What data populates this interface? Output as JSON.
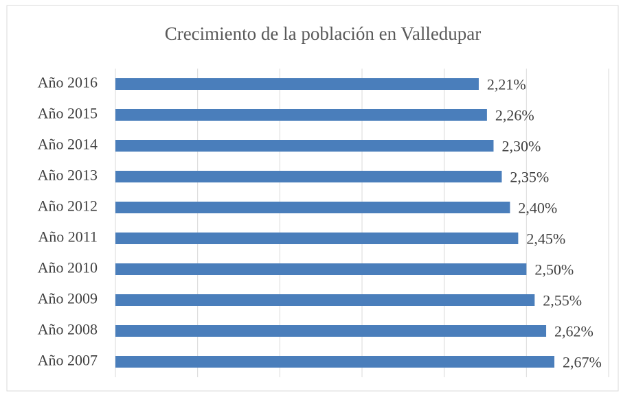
{
  "chart_data": {
    "type": "bar",
    "orientation": "horizontal",
    "title": "Crecimiento de la población en Valledupar",
    "categories": [
      "Año 2016",
      "Año 2015",
      "Año 2014",
      "Año 2013",
      "Año 2012",
      "Año 2011",
      "Año 2010",
      "Año 2009",
      "Año 2008",
      "Año 2007"
    ],
    "values": [
      2.21,
      2.26,
      2.3,
      2.35,
      2.4,
      2.45,
      2.5,
      2.55,
      2.62,
      2.67
    ],
    "value_labels": [
      "2,21%",
      "2,26%",
      "2,30%",
      "2,35%",
      "2,40%",
      "2,45%",
      "2,50%",
      "2,55%",
      "2,62%",
      "2,67%"
    ],
    "color": "#4a7ebb",
    "xlim": [
      0,
      3
    ],
    "xticks": [
      0,
      0.5,
      1,
      1.5,
      2,
      2.5,
      3
    ],
    "grid": true
  }
}
